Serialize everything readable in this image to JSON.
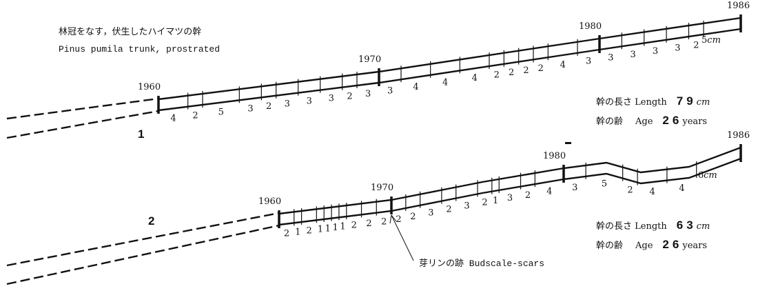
{
  "caption": [
    "林冠をなす，伏生したハイマツの幹",
    "Pinus pumila trunk, prostrated"
  ],
  "unit": "cm",
  "length_label": "幹の長さ Length",
  "age_label": "幹の齢",
  "age_label_en": "Age",
  "age_unit": "years",
  "annotation": "芽リンの跡 Budscale-scars",
  "trunks": [
    {
      "label": "1",
      "years": [
        1960,
        1970,
        1980,
        1986
      ],
      "increments": [
        4,
        2,
        5,
        3,
        2,
        3,
        3,
        3,
        2,
        3,
        3,
        4,
        4,
        4,
        2,
        2,
        2,
        2,
        4,
        3,
        3,
        3,
        3,
        3,
        2,
        5
      ],
      "length": 79,
      "age": 26
    },
    {
      "label": "2",
      "years": [
        1960,
        1970,
        1980,
        1986
      ],
      "increments": [
        2,
        1,
        2,
        1,
        1,
        1,
        1,
        2,
        2,
        2,
        2,
        2,
        3,
        2,
        3,
        2,
        1,
        3,
        2,
        4,
        3,
        5,
        2,
        4,
        4,
        6
      ],
      "length": 63,
      "age": 26
    }
  ]
}
